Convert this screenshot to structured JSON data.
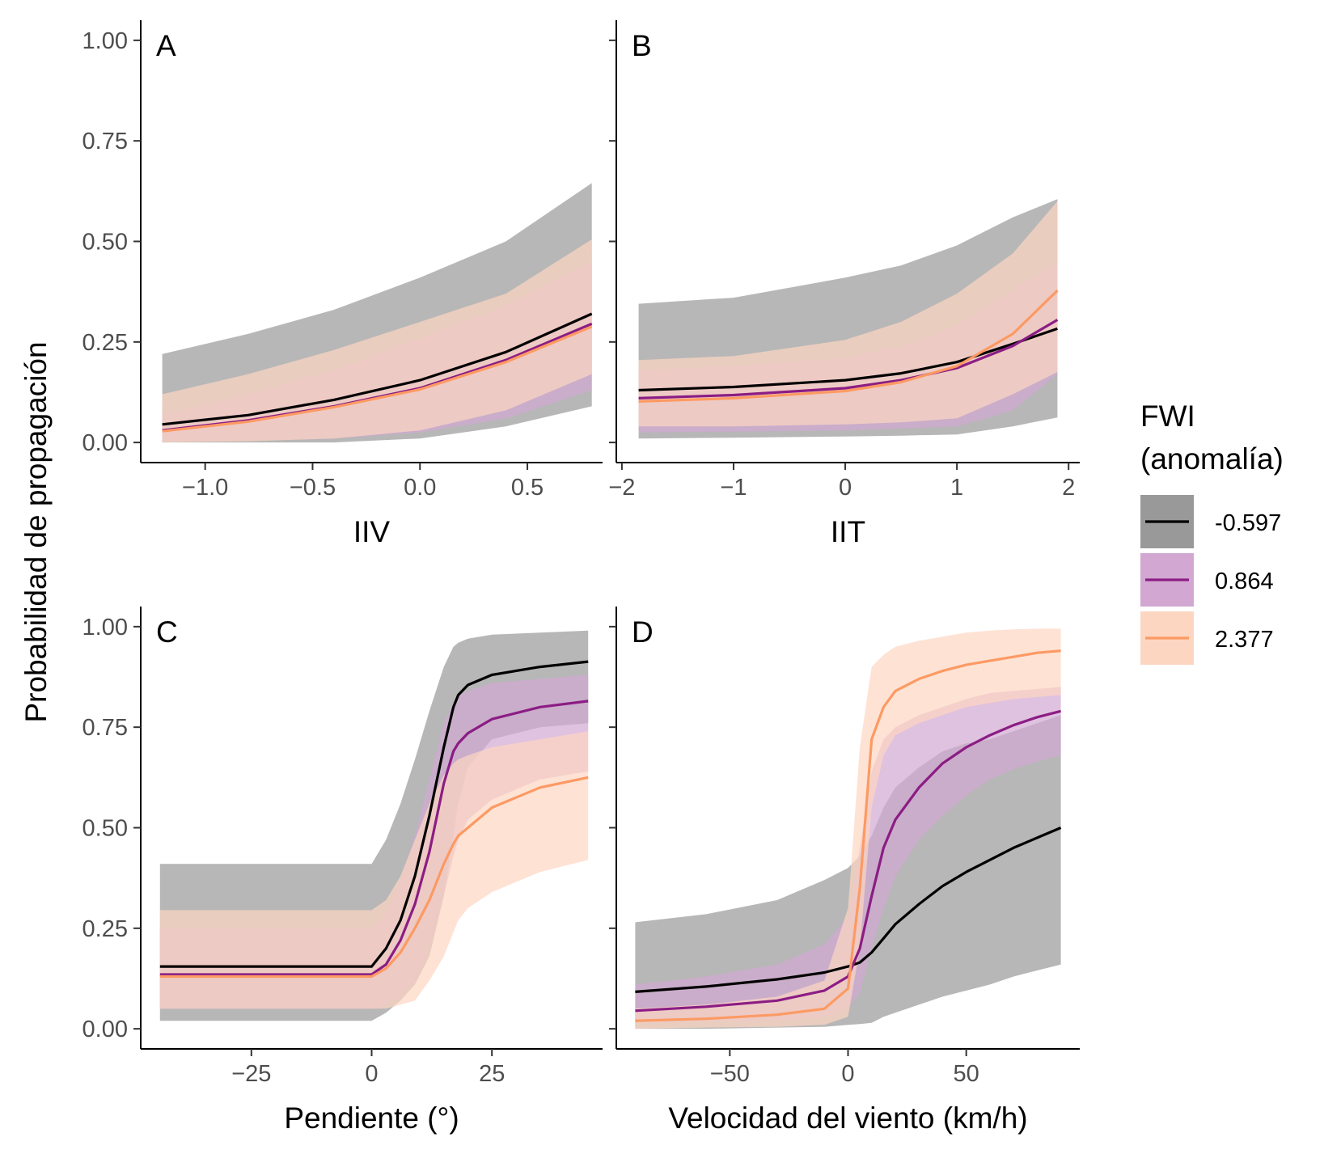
{
  "y_axis_title": "Probabilidad de propagación",
  "legend": {
    "title_line1": "FWI",
    "title_line2": "(anomalía)",
    "entries": [
      {
        "label": "-0.597",
        "line_color": "#000000",
        "band_color": "#999999"
      },
      {
        "label": "0.864",
        "line_color": "#8b1d84",
        "band_color": "#d2a8d2"
      },
      {
        "label": "2.377",
        "line_color": "#fc9a63",
        "band_color": "#fdd6c2"
      }
    ]
  },
  "chart_data": [
    {
      "type": "line",
      "panel": "A",
      "xlabel": "IIV",
      "xlim": [
        -1.3,
        0.85
      ],
      "ylim": [
        -0.05,
        1.05
      ],
      "x_ticks": [
        -1.0,
        -0.5,
        0.0,
        0.5
      ],
      "x_tick_labels": [
        "−1.0",
        "−0.5",
        "0.0",
        "0.5"
      ],
      "y_ticks": [
        0,
        0.25,
        0.5,
        0.75,
        1.0
      ],
      "y_tick_labels": [
        "0.00",
        "0.25",
        "0.50",
        "0.75",
        "1.00"
      ],
      "series": [
        {
          "name": "-0.597",
          "x": [
            -1.2,
            -0.8,
            -0.4,
            0.0,
            0.4,
            0.8
          ],
          "values": [
            0.045,
            0.068,
            0.106,
            0.155,
            0.225,
            0.32
          ],
          "lower": [
            0.0,
            0.0,
            0.0,
            0.01,
            0.04,
            0.09
          ],
          "upper": [
            0.22,
            0.27,
            0.33,
            0.41,
            0.5,
            0.645
          ]
        },
        {
          "name": "0.864",
          "x": [
            -1.2,
            -0.8,
            -0.4,
            0.0,
            0.4,
            0.8
          ],
          "values": [
            0.03,
            0.055,
            0.09,
            0.135,
            0.205,
            0.295
          ],
          "lower": [
            0.003,
            0.005,
            0.01,
            0.025,
            0.06,
            0.13
          ],
          "upper": [
            0.07,
            0.12,
            0.18,
            0.26,
            0.34,
            0.45
          ]
        },
        {
          "name": "2.377",
          "x": [
            -1.2,
            -0.8,
            -0.4,
            0.0,
            0.4,
            0.8
          ],
          "values": [
            0.028,
            0.052,
            0.088,
            0.132,
            0.2,
            0.288
          ],
          "lower": [
            0.0,
            0.003,
            0.01,
            0.03,
            0.08,
            0.17
          ],
          "upper": [
            0.12,
            0.17,
            0.23,
            0.3,
            0.37,
            0.505
          ]
        }
      ]
    },
    {
      "type": "line",
      "panel": "B",
      "xlabel": "IIT",
      "xlim": [
        -2.05,
        2.1
      ],
      "ylim": [
        -0.05,
        1.05
      ],
      "x_ticks": [
        -2,
        -1,
        0,
        1,
        2
      ],
      "x_tick_labels": [
        "−2",
        "−1",
        "0",
        "1",
        "2"
      ],
      "y_ticks": [
        0,
        0.25,
        0.5,
        0.75,
        1.0
      ],
      "y_tick_labels": [
        "0.00",
        "0.25",
        "0.50",
        "0.75",
        "1.00"
      ],
      "series": [
        {
          "name": "-0.597",
          "x": [
            -1.85,
            -1.0,
            0.0,
            0.5,
            1.0,
            1.5,
            1.9
          ],
          "values": [
            0.13,
            0.138,
            0.155,
            0.172,
            0.2,
            0.245,
            0.283
          ],
          "lower": [
            0.01,
            0.012,
            0.015,
            0.017,
            0.02,
            0.04,
            0.062
          ],
          "upper": [
            0.345,
            0.36,
            0.41,
            0.44,
            0.49,
            0.56,
            0.605
          ]
        },
        {
          "name": "0.864",
          "x": [
            -1.85,
            -1.0,
            0.0,
            0.5,
            1.0,
            1.5,
            1.9
          ],
          "values": [
            0.11,
            0.118,
            0.135,
            0.155,
            0.185,
            0.24,
            0.305
          ],
          "lower": [
            0.025,
            0.027,
            0.03,
            0.035,
            0.04,
            0.08,
            0.17
          ],
          "upper": [
            0.18,
            0.19,
            0.21,
            0.24,
            0.29,
            0.38,
            0.45
          ]
        },
        {
          "name": "2.377",
          "x": [
            -1.85,
            -1.0,
            0.0,
            0.5,
            1.0,
            1.5,
            1.9
          ],
          "values": [
            0.102,
            0.11,
            0.128,
            0.15,
            0.19,
            0.27,
            0.378
          ],
          "lower": [
            0.04,
            0.04,
            0.045,
            0.05,
            0.06,
            0.12,
            0.175
          ],
          "upper": [
            0.205,
            0.215,
            0.255,
            0.3,
            0.37,
            0.47,
            0.6
          ]
        }
      ]
    },
    {
      "type": "line",
      "panel": "C",
      "xlabel": "Pendiente (°)",
      "xlim": [
        -48,
        48
      ],
      "ylim": [
        -0.05,
        1.05
      ],
      "x_ticks": [
        -25,
        0,
        25
      ],
      "x_tick_labels": [
        "−25",
        "0",
        "25"
      ],
      "y_ticks": [
        0,
        0.25,
        0.5,
        0.75,
        1.0
      ],
      "y_tick_labels": [
        "0.00",
        "0.25",
        "0.50",
        "0.75",
        "1.00"
      ],
      "series": [
        {
          "name": "-0.597",
          "x": [
            -44,
            0,
            3,
            6,
            9,
            12,
            15,
            17,
            18,
            20,
            25,
            35,
            45
          ],
          "values": [
            0.155,
            0.155,
            0.2,
            0.27,
            0.38,
            0.53,
            0.7,
            0.8,
            0.83,
            0.855,
            0.88,
            0.9,
            0.913
          ],
          "lower": [
            0.02,
            0.02,
            0.04,
            0.07,
            0.11,
            0.18,
            0.33,
            0.48,
            0.56,
            0.65,
            0.72,
            0.75,
            0.76
          ],
          "upper": [
            0.41,
            0.41,
            0.47,
            0.56,
            0.67,
            0.79,
            0.9,
            0.95,
            0.96,
            0.97,
            0.98,
            0.985,
            0.99
          ]
        },
        {
          "name": "0.864",
          "x": [
            -44,
            0,
            3,
            6,
            9,
            12,
            15,
            17,
            18,
            20,
            25,
            35,
            45
          ],
          "values": [
            0.135,
            0.135,
            0.16,
            0.22,
            0.31,
            0.44,
            0.61,
            0.69,
            0.71,
            0.735,
            0.77,
            0.8,
            0.815
          ],
          "lower": [
            0.05,
            0.05,
            0.06,
            0.08,
            0.12,
            0.2,
            0.33,
            0.43,
            0.47,
            0.52,
            0.57,
            0.62,
            0.64
          ],
          "upper": [
            0.25,
            0.25,
            0.29,
            0.37,
            0.48,
            0.62,
            0.76,
            0.81,
            0.83,
            0.84,
            0.86,
            0.87,
            0.88
          ]
        },
        {
          "name": "2.377",
          "x": [
            -44,
            0,
            3,
            6,
            9,
            12,
            15,
            17,
            18,
            20,
            25,
            35,
            45
          ],
          "values": [
            0.13,
            0.13,
            0.15,
            0.19,
            0.25,
            0.32,
            0.41,
            0.46,
            0.48,
            0.5,
            0.55,
            0.6,
            0.625
          ],
          "lower": [
            0.05,
            0.05,
            0.05,
            0.06,
            0.07,
            0.12,
            0.18,
            0.24,
            0.27,
            0.3,
            0.34,
            0.39,
            0.42
          ],
          "upper": [
            0.295,
            0.295,
            0.32,
            0.38,
            0.47,
            0.56,
            0.63,
            0.66,
            0.67,
            0.68,
            0.7,
            0.72,
            0.74
          ]
        }
      ]
    },
    {
      "type": "line",
      "panel": "D",
      "xlabel": "Velocidad del viento (km/h)",
      "xlim": [
        -98,
        98
      ],
      "ylim": [
        -0.05,
        1.05
      ],
      "x_ticks": [
        -50,
        0,
        50
      ],
      "x_tick_labels": [
        "−50",
        "0",
        "50"
      ],
      "y_ticks": [
        0,
        0.25,
        0.5,
        0.75,
        1.0
      ],
      "y_tick_labels": [
        "0.00",
        "0.25",
        "0.50",
        "0.75",
        "1.00"
      ],
      "series": [
        {
          "name": "-0.597",
          "x": [
            -90,
            -60,
            -30,
            -10,
            0,
            5,
            10,
            15,
            20,
            30,
            40,
            50,
            60,
            70,
            80,
            90
          ],
          "values": [
            0.092,
            0.105,
            0.123,
            0.14,
            0.155,
            0.165,
            0.19,
            0.225,
            0.26,
            0.31,
            0.355,
            0.39,
            0.42,
            0.45,
            0.475,
            0.5
          ],
          "lower": [
            0.0,
            0.0,
            0.003,
            0.005,
            0.01,
            0.012,
            0.015,
            0.03,
            0.04,
            0.06,
            0.08,
            0.095,
            0.11,
            0.13,
            0.145,
            0.16
          ],
          "upper": [
            0.265,
            0.285,
            0.32,
            0.37,
            0.4,
            0.43,
            0.48,
            0.55,
            0.6,
            0.65,
            0.69,
            0.71,
            0.72,
            0.74,
            0.76,
            0.78
          ]
        },
        {
          "name": "0.864",
          "x": [
            -90,
            -60,
            -30,
            -10,
            0,
            5,
            10,
            15,
            20,
            30,
            40,
            50,
            60,
            70,
            80,
            90
          ],
          "values": [
            0.045,
            0.055,
            0.07,
            0.095,
            0.13,
            0.2,
            0.33,
            0.45,
            0.52,
            0.6,
            0.66,
            0.7,
            0.73,
            0.755,
            0.775,
            0.79
          ],
          "lower": [
            0.015,
            0.018,
            0.02,
            0.03,
            0.05,
            0.09,
            0.2,
            0.3,
            0.38,
            0.47,
            0.53,
            0.58,
            0.62,
            0.645,
            0.665,
            0.68
          ],
          "upper": [
            0.11,
            0.13,
            0.16,
            0.21,
            0.28,
            0.45,
            0.64,
            0.72,
            0.75,
            0.78,
            0.8,
            0.82,
            0.835,
            0.84,
            0.845,
            0.85
          ]
        },
        {
          "name": "2.377",
          "x": [
            -90,
            -60,
            -30,
            -10,
            0,
            5,
            10,
            15,
            20,
            30,
            40,
            50,
            60,
            70,
            80,
            90
          ],
          "values": [
            0.02,
            0.025,
            0.035,
            0.05,
            0.1,
            0.35,
            0.72,
            0.8,
            0.84,
            0.87,
            0.89,
            0.905,
            0.915,
            0.925,
            0.935,
            0.94
          ],
          "lower": [
            0.0,
            0.003,
            0.005,
            0.01,
            0.03,
            0.2,
            0.55,
            0.68,
            0.73,
            0.76,
            0.78,
            0.8,
            0.81,
            0.82,
            0.825,
            0.83
          ],
          "upper": [
            0.05,
            0.06,
            0.08,
            0.12,
            0.3,
            0.7,
            0.9,
            0.93,
            0.95,
            0.965,
            0.975,
            0.985,
            0.99,
            0.993,
            0.995,
            0.995
          ]
        }
      ]
    }
  ]
}
